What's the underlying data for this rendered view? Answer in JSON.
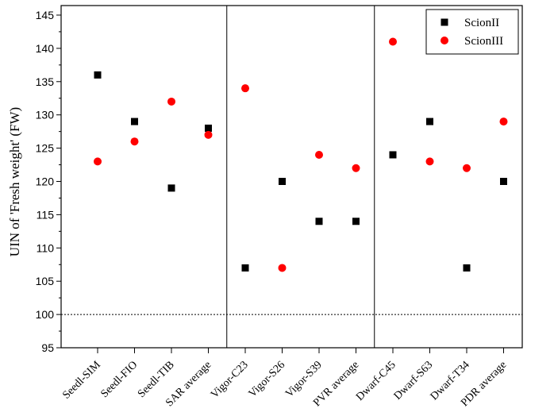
{
  "chart_data": {
    "type": "scatter",
    "title": "",
    "xlabel": "",
    "ylabel": "UIN of 'Fresh weight' (FW)",
    "ylim": [
      95,
      146
    ],
    "yticks": [
      95,
      100,
      105,
      110,
      115,
      120,
      125,
      130,
      135,
      140,
      145
    ],
    "categories": [
      "Seedl-SIM",
      "Seedl-FIO",
      "Seedl-TIB",
      "SAR average",
      "Vigor-C23",
      "Vigor-S26",
      "Vigor-S39",
      "PVR average",
      "Dwarf-C45",
      "Dwarf-S63",
      "Dwarf-T34",
      "PDR average"
    ],
    "series": [
      {
        "name": "ScionII",
        "marker": "square",
        "color": "#000000",
        "values": [
          136,
          129,
          119,
          128,
          107,
          120,
          114,
          114,
          124,
          129,
          107,
          120
        ]
      },
      {
        "name": "ScionIII",
        "marker": "circle",
        "color": "#ff0000",
        "values": [
          123,
          126,
          132,
          127,
          134,
          107,
          124,
          122,
          141,
          123,
          122,
          129
        ]
      }
    ],
    "reference_line": 100,
    "group_separators_after": [
      "SAR average",
      "PVR average"
    ],
    "grid": false,
    "legend_position": "top-right"
  }
}
